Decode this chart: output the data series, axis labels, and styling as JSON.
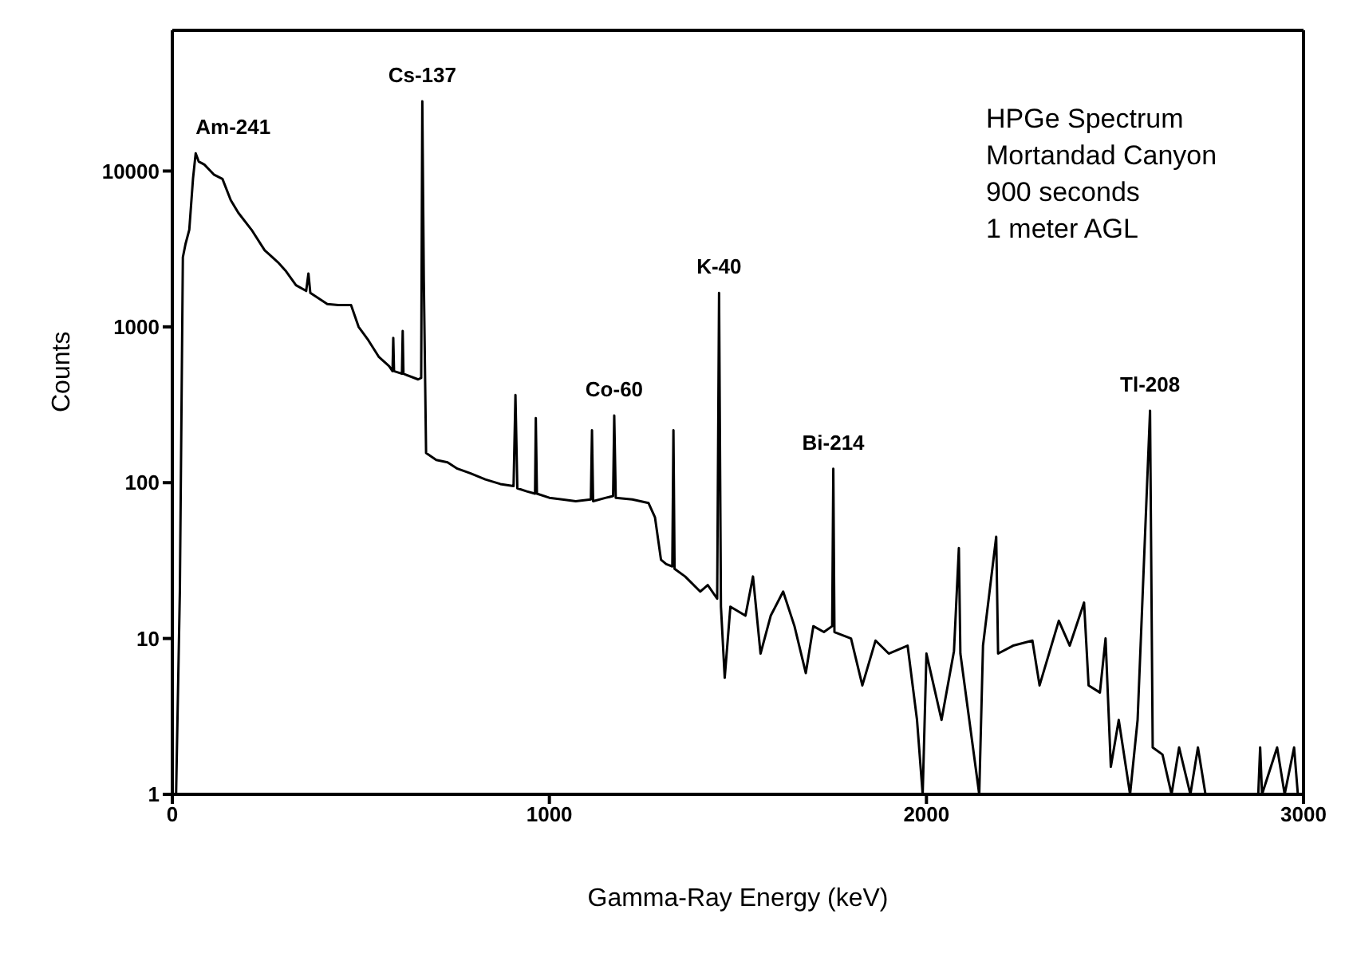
{
  "chart_data": {
    "type": "line",
    "xlabel": "Gamma-Ray Energy (keV)",
    "ylabel": "Counts",
    "annotations": [
      "HPGe Spectrum",
      "Mortandad Canyon",
      "900 seconds",
      "1 meter AGL",
      {
        "text": "Am-241",
        "x": 62,
        "y": 13000
      },
      {
        "text": "Cs-137",
        "x": 663,
        "y": 28000
      },
      {
        "text": "Co-60",
        "x": 1172,
        "y": 270
      },
      {
        "text": "K-40",
        "x": 1450,
        "y": 1650
      },
      {
        "text": "Bi-214",
        "x": 1753,
        "y": 123
      },
      {
        "text": "Tl-208",
        "x": 2593,
        "y": 290
      }
    ],
    "log": "y",
    "marker": "none",
    "line_style": "solid",
    "xlim": [
      0,
      3000
    ],
    "xticks": [
      0,
      1000,
      2000,
      3000
    ],
    "ylim": [
      1,
      80000
    ],
    "yticks": [
      1,
      10,
      100,
      1000,
      10000
    ],
    "series": [
      {
        "color": "#000000",
        "x": [
          0,
          10,
          20,
          28,
          35,
          45,
          55,
          62,
          70,
          85,
          110,
          133,
          155,
          175,
          210,
          245,
          265,
          280,
          300,
          328,
          355,
          361,
          366,
          411,
          440,
          474,
          494,
          520,
          548,
          575,
          584,
          586,
          588,
          609,
          611,
          613,
          652,
          660,
          663,
          667,
          673,
          700,
          730,
          756,
          790,
          830,
          870,
          905,
          910,
          915,
          940,
          962,
          964,
          967,
          1000,
          1034,
          1070,
          1110,
          1113,
          1116,
          1150,
          1169,
          1172,
          1176,
          1220,
          1263,
          1280,
          1296,
          1310,
          1326,
          1329,
          1332,
          1360,
          1400,
          1420,
          1445,
          1450,
          1455,
          1465,
          1480,
          1520,
          1540,
          1560,
          1587,
          1620,
          1650,
          1680,
          1700,
          1728,
          1750,
          1753,
          1756,
          1800,
          1830,
          1865,
          1900,
          1950,
          1975,
          1990,
          2000,
          2040,
          2073,
          2086,
          2090,
          2140,
          2150,
          2185,
          2190,
          2230,
          2281,
          2300,
          2351,
          2380,
          2418,
          2430,
          2460,
          2475,
          2489,
          2510,
          2540,
          2560,
          2593,
          2600,
          2626,
          2650,
          2670,
          2700,
          2720,
          2740,
          2880,
          2885,
          2890,
          2930,
          2950,
          2975,
          2985,
          3000
        ],
        "values": [
          1,
          1,
          20,
          2800,
          3400,
          4200,
          9000,
          13000,
          11500,
          11000,
          9500,
          8900,
          6500,
          5400,
          4200,
          3100,
          2800,
          2600,
          2300,
          1850,
          1700,
          2200,
          1650,
          1400,
          1380,
          1380,
          1000,
          820,
          640,
          560,
          520,
          850,
          520,
          500,
          940,
          500,
          460,
          470,
          28000,
          2000,
          155,
          140,
          135,
          123,
          115,
          105,
          98,
          95,
          365,
          92,
          88,
          85,
          260,
          85,
          80,
          78,
          76,
          78,
          217,
          76,
          80,
          82,
          270,
          80,
          78,
          74,
          60,
          32,
          30,
          29,
          217,
          28,
          25,
          20,
          22,
          18,
          1650,
          16,
          5.6,
          16,
          14,
          25,
          8,
          14,
          20,
          12,
          6,
          12,
          11,
          12,
          123,
          11,
          10,
          5,
          9.7,
          8,
          9,
          3,
          1,
          8,
          3,
          8.3,
          38,
          8,
          1,
          9,
          45,
          8,
          9,
          9.7,
          5,
          13,
          9,
          17,
          5,
          4.5,
          10,
          1.5,
          3,
          1,
          3,
          290,
          2,
          1.8,
          1,
          2,
          1,
          2,
          1,
          1,
          2,
          1,
          2,
          1,
          2,
          1,
          1
        ]
      }
    ]
  }
}
